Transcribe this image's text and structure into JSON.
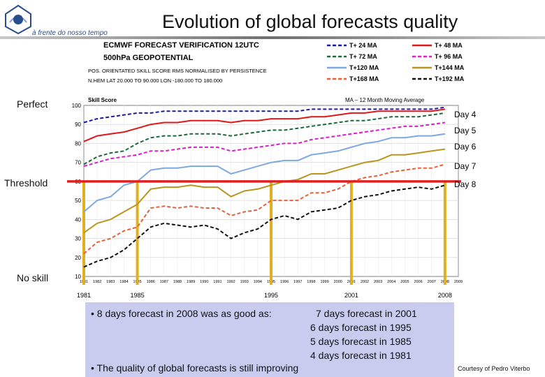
{
  "slide": {
    "title": "Evolution of global forecasts quality",
    "logo_text": "à frente do nosso tempo",
    "credit": "Courtesy of Pedro Viterbo"
  },
  "side_labels": {
    "perfect": "Perfect",
    "threshold": "Threshold",
    "no_skill": "No skill"
  },
  "day_labels": [
    "Day 4",
    "Day 5",
    "Day 6",
    "Day 7",
    "Day 8"
  ],
  "bullets": {
    "line1": "• 8 days forecast in 2008 was as good as:",
    "line1_tail": "7 days forecast in 2001",
    "line2": "6 days forecast in 1995",
    "line3": "5 days forecast in 1985",
    "line4": "4 days forecast in 1981",
    "line5": "• The quality of global forecasts is still improving"
  },
  "colors": {
    "threshold": "#e02020",
    "marker": "#e0b020",
    "box": "#c9ccef"
  },
  "chart_data": {
    "type": "line",
    "title_lines": [
      "ECMWF FORECAST VERIFICATION 12UTC",
      "500hPa GEOPOTENTIAL"
    ],
    "subtitle_lines": [
      "POS. ORIENTATED SKILL SCORE   RMS NORMALISED BY PERSISTENCE",
      "N.HEM  LAT 20.000 TO 90.000  LON -180.000 TO 180.000"
    ],
    "ylabel": "Skill Score",
    "top_right_label": "MA – 12 Month Moving Average",
    "ylim": [
      10,
      100
    ],
    "y_ticks": [
      "100",
      "90",
      "80",
      "70",
      "60",
      "50",
      "40",
      "30",
      "20",
      "10"
    ],
    "x_ticks": [
      "1981",
      "1982",
      "1983",
      "1984",
      "1985",
      "1986",
      "1987",
      "1988",
      "1989",
      "1990",
      "1991",
      "1992",
      "1993",
      "1994",
      "1995",
      "1996",
      "1997",
      "1998",
      "1999",
      "2000",
      "2001",
      "2002",
      "2003",
      "2004",
      "2005",
      "2006",
      "2007",
      "2008",
      "2009"
    ],
    "highlight_years": [
      "1981",
      "1985",
      "1995",
      "2001",
      "2008"
    ],
    "threshold": 60,
    "series": [
      {
        "name": "T+ 24 MA",
        "color": "#1a1aa0",
        "dash": "dashed",
        "points": [
          [
            1981,
            91
          ],
          [
            1982,
            93
          ],
          [
            1983,
            94
          ],
          [
            1984,
            95
          ],
          [
            1985,
            96
          ],
          [
            1986,
            96
          ],
          [
            1987,
            97
          ],
          [
            1988,
            97
          ],
          [
            1989,
            97
          ],
          [
            1990,
            97
          ],
          [
            1991,
            97
          ],
          [
            1992,
            97
          ],
          [
            1993,
            97
          ],
          [
            1994,
            97
          ],
          [
            1995,
            97
          ],
          [
            1996,
            97
          ],
          [
            1997,
            97
          ],
          [
            1998,
            98
          ],
          [
            1999,
            98
          ],
          [
            2000,
            98
          ],
          [
            2001,
            98
          ],
          [
            2002,
            98
          ],
          [
            2003,
            98
          ],
          [
            2004,
            98
          ],
          [
            2005,
            98
          ],
          [
            2006,
            98
          ],
          [
            2007,
            98
          ],
          [
            2008,
            99
          ]
        ]
      },
      {
        "name": "T+ 48 MA",
        "color": "#e01818",
        "dash": "solid",
        "points": [
          [
            1981,
            81
          ],
          [
            1982,
            84
          ],
          [
            1983,
            85
          ],
          [
            1984,
            86
          ],
          [
            1985,
            88
          ],
          [
            1986,
            90
          ],
          [
            1987,
            91
          ],
          [
            1988,
            91
          ],
          [
            1989,
            92
          ],
          [
            1990,
            92
          ],
          [
            1991,
            92
          ],
          [
            1992,
            91
          ],
          [
            1993,
            92
          ],
          [
            1994,
            92
          ],
          [
            1995,
            93
          ],
          [
            1996,
            93
          ],
          [
            1997,
            93
          ],
          [
            1998,
            94
          ],
          [
            1999,
            94
          ],
          [
            2000,
            95
          ],
          [
            2001,
            96
          ],
          [
            2002,
            96
          ],
          [
            2003,
            97
          ],
          [
            2004,
            97
          ],
          [
            2005,
            97
          ],
          [
            2006,
            97
          ],
          [
            2007,
            97
          ],
          [
            2008,
            98
          ]
        ]
      },
      {
        "name": "T+ 72 MA",
        "color": "#1a6a3a",
        "dash": "dashed",
        "points": [
          [
            1981,
            69
          ],
          [
            1982,
            73
          ],
          [
            1983,
            75
          ],
          [
            1984,
            76
          ],
          [
            1985,
            80
          ],
          [
            1986,
            83
          ],
          [
            1987,
            84
          ],
          [
            1988,
            84
          ],
          [
            1989,
            85
          ],
          [
            1990,
            85
          ],
          [
            1991,
            85
          ],
          [
            1992,
            84
          ],
          [
            1993,
            85
          ],
          [
            1994,
            86
          ],
          [
            1995,
            87
          ],
          [
            1996,
            87
          ],
          [
            1997,
            88
          ],
          [
            1998,
            89
          ],
          [
            1999,
            90
          ],
          [
            2000,
            91
          ],
          [
            2001,
            92
          ],
          [
            2002,
            92
          ],
          [
            2003,
            93
          ],
          [
            2004,
            94
          ],
          [
            2005,
            94
          ],
          [
            2006,
            94
          ],
          [
            2007,
            95
          ],
          [
            2008,
            96
          ]
        ]
      },
      {
        "name": "T+ 96 MA",
        "color": "#d820c8",
        "dash": "dashed",
        "points": [
          [
            1981,
            68
          ],
          [
            1982,
            70
          ],
          [
            1983,
            72
          ],
          [
            1984,
            73
          ],
          [
            1985,
            74
          ],
          [
            1986,
            76
          ],
          [
            1987,
            76
          ],
          [
            1988,
            77
          ],
          [
            1989,
            78
          ],
          [
            1990,
            78
          ],
          [
            1991,
            78
          ],
          [
            1992,
            76
          ],
          [
            1993,
            77
          ],
          [
            1994,
            78
          ],
          [
            1995,
            79
          ],
          [
            1996,
            80
          ],
          [
            1997,
            80
          ],
          [
            1998,
            82
          ],
          [
            1999,
            83
          ],
          [
            2000,
            84
          ],
          [
            2001,
            85
          ],
          [
            2002,
            86
          ],
          [
            2003,
            87
          ],
          [
            2004,
            88
          ],
          [
            2005,
            89
          ],
          [
            2006,
            89
          ],
          [
            2007,
            90
          ],
          [
            2008,
            91
          ]
        ]
      },
      {
        "name": "T+120 MA",
        "color": "#7ea8e0",
        "dash": "solid",
        "points": [
          [
            1981,
            44
          ],
          [
            1982,
            50
          ],
          [
            1983,
            52
          ],
          [
            1984,
            58
          ],
          [
            1985,
            60
          ],
          [
            1986,
            66
          ],
          [
            1987,
            67
          ],
          [
            1988,
            67
          ],
          [
            1989,
            68
          ],
          [
            1990,
            68
          ],
          [
            1991,
            68
          ],
          [
            1992,
            64
          ],
          [
            1993,
            66
          ],
          [
            1994,
            68
          ],
          [
            1995,
            70
          ],
          [
            1996,
            71
          ],
          [
            1997,
            71
          ],
          [
            1998,
            74
          ],
          [
            1999,
            75
          ],
          [
            2000,
            76
          ],
          [
            2001,
            78
          ],
          [
            2002,
            80
          ],
          [
            2003,
            81
          ],
          [
            2004,
            83
          ],
          [
            2005,
            83
          ],
          [
            2006,
            84
          ],
          [
            2007,
            84
          ],
          [
            2008,
            85
          ]
        ]
      },
      {
        "name": "T+144 MA",
        "color": "#b8961e",
        "dash": "solid",
        "points": [
          [
            1981,
            33
          ],
          [
            1982,
            38
          ],
          [
            1983,
            40
          ],
          [
            1984,
            44
          ],
          [
            1985,
            48
          ],
          [
            1986,
            56
          ],
          [
            1987,
            57
          ],
          [
            1988,
            57
          ],
          [
            1989,
            58
          ],
          [
            1990,
            57
          ],
          [
            1991,
            57
          ],
          [
            1992,
            52
          ],
          [
            1993,
            55
          ],
          [
            1994,
            56
          ],
          [
            1995,
            58
          ],
          [
            1996,
            60
          ],
          [
            1997,
            61
          ],
          [
            1998,
            64
          ],
          [
            1999,
            64
          ],
          [
            2000,
            66
          ],
          [
            2001,
            68
          ],
          [
            2002,
            70
          ],
          [
            2003,
            71
          ],
          [
            2004,
            74
          ],
          [
            2005,
            74
          ],
          [
            2006,
            75
          ],
          [
            2007,
            76
          ],
          [
            2008,
            77
          ]
        ]
      },
      {
        "name": "T+168 MA",
        "color": "#e8603a",
        "dash": "dashed",
        "points": [
          [
            1981,
            22
          ],
          [
            1982,
            28
          ],
          [
            1983,
            30
          ],
          [
            1984,
            34
          ],
          [
            1985,
            36
          ],
          [
            1986,
            46
          ],
          [
            1987,
            47
          ],
          [
            1988,
            46
          ],
          [
            1989,
            47
          ],
          [
            1990,
            46
          ],
          [
            1991,
            46
          ],
          [
            1992,
            42
          ],
          [
            1993,
            44
          ],
          [
            1994,
            45
          ],
          [
            1995,
            50
          ],
          [
            1996,
            50
          ],
          [
            1997,
            50
          ],
          [
            1998,
            54
          ],
          [
            1999,
            54
          ],
          [
            2000,
            56
          ],
          [
            2001,
            60
          ],
          [
            2002,
            62
          ],
          [
            2003,
            63
          ],
          [
            2004,
            65
          ],
          [
            2005,
            66
          ],
          [
            2006,
            67
          ],
          [
            2007,
            67
          ],
          [
            2008,
            69
          ]
        ]
      },
      {
        "name": "T+192 MA",
        "color": "#111111",
        "dash": "dashed",
        "points": [
          [
            1981,
            15
          ],
          [
            1982,
            18
          ],
          [
            1983,
            20
          ],
          [
            1984,
            24
          ],
          [
            1985,
            30
          ],
          [
            1986,
            36
          ],
          [
            1987,
            38
          ],
          [
            1988,
            37
          ],
          [
            1989,
            36
          ],
          [
            1990,
            37
          ],
          [
            1991,
            35
          ],
          [
            1992,
            30
          ],
          [
            1993,
            33
          ],
          [
            1994,
            35
          ],
          [
            1995,
            40
          ],
          [
            1996,
            42
          ],
          [
            1997,
            40
          ],
          [
            1998,
            44
          ],
          [
            1999,
            45
          ],
          [
            2000,
            46
          ],
          [
            2001,
            50
          ],
          [
            2002,
            52
          ],
          [
            2003,
            53
          ],
          [
            2004,
            55
          ],
          [
            2005,
            56
          ],
          [
            2006,
            57
          ],
          [
            2007,
            56
          ],
          [
            2008,
            58
          ]
        ]
      }
    ]
  }
}
